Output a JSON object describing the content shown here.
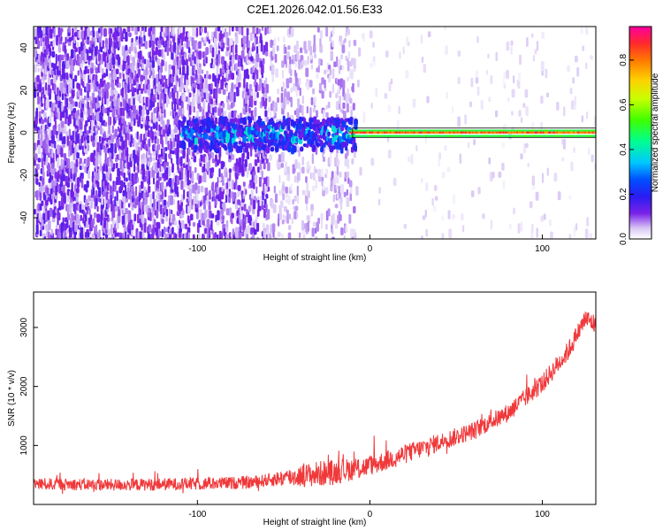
{
  "title": "C2E1.2026.042.01.56.E33",
  "colors": {
    "snr_line": "#f0383a",
    "axes": "#000000",
    "background": "#ffffff",
    "colormap": [
      "#ffffff",
      "#d9c8f5",
      "#7a22e8",
      "#3a2af0",
      "#0000ff",
      "#00c8ff",
      "#00ff7a",
      "#40ff00",
      "#c8ff00",
      "#ffd000",
      "#ff7a00",
      "#ff2a2a",
      "#ff00a0"
    ]
  },
  "chart_data": [
    {
      "type": "heatmap",
      "xlabel": "Height of straight line (km)",
      "ylabel": "Frequency (Hz)",
      "xlim": [
        -195,
        131
      ],
      "ylim": [
        -50,
        50
      ],
      "xticks": [
        -100,
        0,
        100
      ],
      "yticks": [
        -40,
        -20,
        0,
        20,
        40
      ],
      "colorbar": {
        "label": "Normalized spectral amplitude",
        "range": [
          0,
          0.95
        ],
        "ticks": [
          0.0,
          0.2,
          0.4,
          0.6,
          0.8
        ]
      },
      "description_regions": [
        {
          "x_range": [
            -195,
            -60
          ],
          "pattern": "dense scattered purple speckle across all frequencies"
        },
        {
          "x_range": [
            -60,
            -10
          ],
          "pattern": "sparser light lavender speckle, cluster near 0 Hz with cyan/green spots"
        },
        {
          "x_range": [
            -10,
            131
          ],
          "pattern": "narrow band at 0 Hz, red/yellow core with green edges, ~±2 Hz width"
        }
      ]
    },
    {
      "type": "line",
      "series": [
        {
          "color": "#f0383a"
        }
      ],
      "xlabel": "Height of straight line (km)",
      "ylabel": "SNR (10 * v/v)",
      "xlim": [
        -195,
        131
      ],
      "ylim": [
        0,
        3600
      ],
      "xticks": [
        -100,
        0,
        100
      ],
      "yticks": [
        1000,
        2000,
        3000
      ],
      "trend_points": [
        {
          "x": -195,
          "y": 350
        },
        {
          "x": -150,
          "y": 330
        },
        {
          "x": -100,
          "y": 350
        },
        {
          "x": -70,
          "y": 370
        },
        {
          "x": -50,
          "y": 450
        },
        {
          "x": -20,
          "y": 550
        },
        {
          "x": 0,
          "y": 650
        },
        {
          "x": 20,
          "y": 850
        },
        {
          "x": 40,
          "y": 1050
        },
        {
          "x": 60,
          "y": 1250
        },
        {
          "x": 80,
          "y": 1550
        },
        {
          "x": 100,
          "y": 2050
        },
        {
          "x": 115,
          "y": 2600
        },
        {
          "x": 125,
          "y": 3150
        },
        {
          "x": 131,
          "y": 3050
        }
      ],
      "noise_amplitude": [
        {
          "x": -195,
          "a": 200
        },
        {
          "x": -60,
          "a": 220
        },
        {
          "x": -30,
          "a": 450
        },
        {
          "x": 0,
          "a": 350
        },
        {
          "x": 60,
          "a": 300
        },
        {
          "x": 131,
          "a": 350
        }
      ]
    }
  ]
}
